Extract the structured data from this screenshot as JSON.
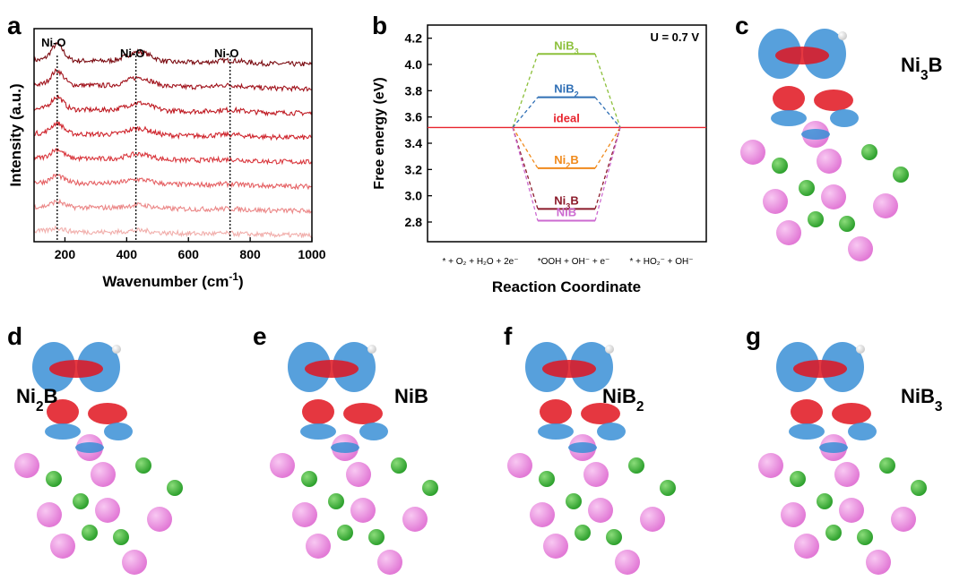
{
  "panel_letters": [
    "a",
    "b",
    "c",
    "d",
    "e",
    "f",
    "g"
  ],
  "structure_panels": {
    "c": {
      "name": "Ni",
      "sub": "3",
      "suffix": "B"
    },
    "d": {
      "name": "Ni",
      "sub": "2",
      "suffix": "B"
    },
    "e": {
      "name": "NiB",
      "sub": "",
      "suffix": ""
    },
    "f": {
      "name": "NiB",
      "sub": "2",
      "suffix": ""
    },
    "g": {
      "name": "NiB",
      "sub": "3",
      "suffix": ""
    }
  },
  "colors": {
    "blue_isosurface": "#3a8fd6",
    "red_isosurface": "#e0141e",
    "ni_atom": "#e27ad6",
    "b_atom": "#2ea12e",
    "h_atom": "#f2f2f2"
  },
  "chart_data": [
    {
      "type": "line",
      "panel": "a",
      "xlabel": "Wavenumber",
      "xunit_base": "cm",
      "xunit_exp": "-1",
      "ylabel": "Intensity (a.u.)",
      "xlim": [
        100,
        1000
      ],
      "xticks": [
        200,
        400,
        600,
        800,
        1000
      ],
      "peak_labels": [
        "Ni-O",
        "Ni-O",
        "Ni-O"
      ],
      "peak_positions": [
        175,
        430,
        735
      ],
      "series_colors": [
        "#7a0a10",
        "#a0111a",
        "#bf1a22",
        "#cf242c",
        "#d9363c",
        "#e56063",
        "#eb8787",
        "#f1aeab"
      ],
      "series_offsets": [
        10,
        8.6,
        7.2,
        5.8,
        4.4,
        3.0,
        1.6,
        0.2
      ]
    },
    {
      "type": "line",
      "panel": "b",
      "xlabel": "Reaction Coordinate",
      "ylabel": "Free energy (eV)",
      "ylim": [
        2.65,
        4.3
      ],
      "yticks": [
        2.8,
        3.0,
        3.2,
        3.4,
        3.6,
        3.8,
        4.0,
        4.2
      ],
      "annotation": "U = 0.7 V",
      "states": [
        "* + O₂ + H₂O + 2e⁻",
        "*OOH + OH⁻ + e⁻",
        "* + HO₂⁻ + OH⁻"
      ],
      "ideal_value": 3.52,
      "series": [
        {
          "name": "NiB",
          "sub": "3",
          "color": "#8dc03c",
          "values": [
            3.52,
            4.08,
            3.52
          ]
        },
        {
          "name": "NiB",
          "sub": "2",
          "color": "#2f6fb5",
          "values": [
            3.52,
            3.75,
            3.52
          ]
        },
        {
          "name": "ideal",
          "sub": "",
          "color": "#e8242e",
          "values": [
            3.52,
            3.52,
            3.52
          ]
        },
        {
          "name": "Ni",
          "sub": "2",
          "suffix": "B",
          "color": "#f08a1c",
          "values": [
            3.52,
            3.21,
            3.52
          ]
        },
        {
          "name": "Ni",
          "sub": "3",
          "suffix": "B",
          "color": "#8b1a2a",
          "values": [
            3.52,
            2.9,
            3.52
          ]
        },
        {
          "name": "NiB",
          "sub": "",
          "color": "#cc6ad0",
          "values": [
            3.52,
            2.81,
            3.52
          ]
        }
      ]
    }
  ]
}
